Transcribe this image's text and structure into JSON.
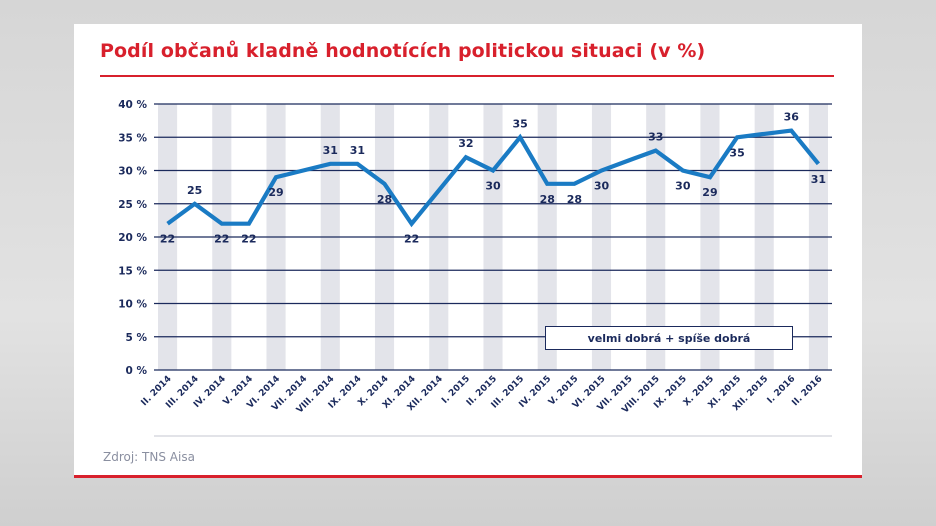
{
  "title": "Podíl občanů kladně hodnotících politickou situaci (v %)",
  "source": "Zdroj: TNS Aisa",
  "colors": {
    "title": "#d8202c",
    "line": "#1a7bc4",
    "navy": "#1b2a5c",
    "stripe": "#e3e4ea"
  },
  "chart_data": {
    "type": "line",
    "title": "Podíl občanů kladně hodnotících politickou situaci (v %)",
    "xlabel": "",
    "ylabel": "",
    "ylim": [
      0,
      40
    ],
    "yticks": [
      "0 %",
      "5 %",
      "10 %",
      "15 %",
      "20 %",
      "25 %",
      "30 %",
      "35 %",
      "40 %"
    ],
    "grid": true,
    "legend": "bottom-right",
    "categories": [
      "II. 2014",
      "III. 2014",
      "IV. 2014",
      "V. 2014",
      "VI. 2014",
      "VII. 2014",
      "VIII. 2014",
      "IX. 2014",
      "X. 2014",
      "XI. 2014",
      "XII. 2014",
      "I. 2015",
      "II. 2015",
      "III. 2015",
      "IV. 2015",
      "V. 2015",
      "VI. 2015",
      "VII. 2015",
      "VIII. 2015",
      "IX. 2015",
      "X. 2015",
      "XI. 2015",
      "XII. 2015",
      "I. 2016",
      "II. 2016"
    ],
    "series": [
      {
        "name": "velmi dobrá + spíše dobrá",
        "values": [
          22,
          25,
          22,
          22,
          29,
          30,
          31,
          31,
          28,
          22,
          27,
          32,
          30,
          35,
          28,
          28,
          30,
          31.5,
          33,
          30,
          29,
          35,
          35.5,
          36,
          31
        ],
        "labels": [
          "22",
          "25",
          "22",
          "22",
          "29",
          null,
          "31",
          "31",
          "28",
          "22",
          null,
          "32",
          "30",
          "35",
          "28",
          "28",
          "30",
          null,
          "33",
          "30",
          "29",
          "35",
          null,
          "36",
          "31"
        ]
      }
    ]
  }
}
